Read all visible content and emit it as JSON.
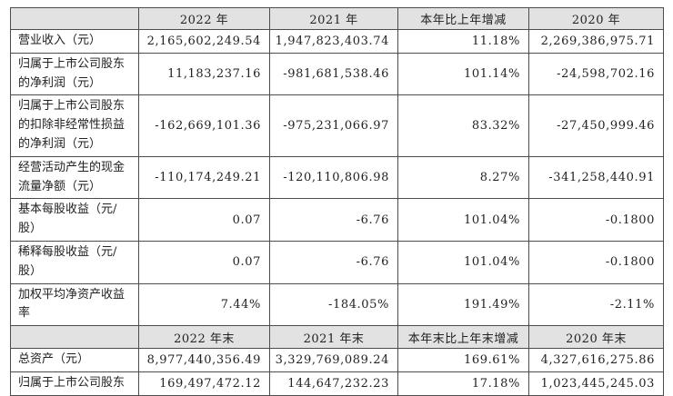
{
  "annual": {
    "headers": {
      "label": "",
      "y2022": "2022 年",
      "y2021": "2021 年",
      "change": "本年比上年增减",
      "y2020": "2020 年"
    },
    "rows": [
      {
        "label": "营业收入（元）",
        "y2022": "2,165,602,249.54",
        "y2021": "1,947,823,403.74",
        "change": "11.18%",
        "y2020": "2,269,386,975.71"
      },
      {
        "label": "归属于上市公司股东的净利润（元）",
        "y2022": "11,183,237.16",
        "y2021": "-981,681,538.46",
        "change": "101.14%",
        "y2020": "-24,598,702.16"
      },
      {
        "label": "归属于上市公司股东的扣除非经常性损益的净利润（元）",
        "y2022": "-162,669,101.36",
        "y2021": "-975,231,066.97",
        "change": "83.32%",
        "y2020": "-27,450,999.46"
      },
      {
        "label": "经营活动产生的现金流量净额（元）",
        "y2022": "-110,174,249.21",
        "y2021": "-120,110,806.98",
        "change": "8.27%",
        "y2020": "-341,258,440.91"
      },
      {
        "label": "基本每股收益（元/股）",
        "y2022": "0.07",
        "y2021": "-6.76",
        "change": "101.04%",
        "y2020": "-0.1800"
      },
      {
        "label": "稀释每股收益（元/股）",
        "y2022": "0.07",
        "y2021": "-6.76",
        "change": "101.04%",
        "y2020": "-0.1800"
      },
      {
        "label": "加权平均净资产收益率",
        "y2022": "7.44%",
        "y2021": "-184.05%",
        "change": "191.49%",
        "y2020": "-2.11%"
      }
    ]
  },
  "year_end": {
    "headers": {
      "label": "",
      "y2022": "2022 年末",
      "y2021": "2021 年末",
      "change": "本年末比上年末增减",
      "y2020": "2020 年末"
    },
    "rows": [
      {
        "label": "总资产（元）",
        "y2022": "8,977,440,356.49",
        "y2021": "3,329,769,089.24",
        "change": "169.61%",
        "y2020": "4,327,616,275.86"
      },
      {
        "label": "归属于上市公司股东",
        "y2022": "169,497,472.12",
        "y2021": "144,647,232.23",
        "change": "17.18%",
        "y2020": "1,023,445,245.03"
      }
    ]
  }
}
